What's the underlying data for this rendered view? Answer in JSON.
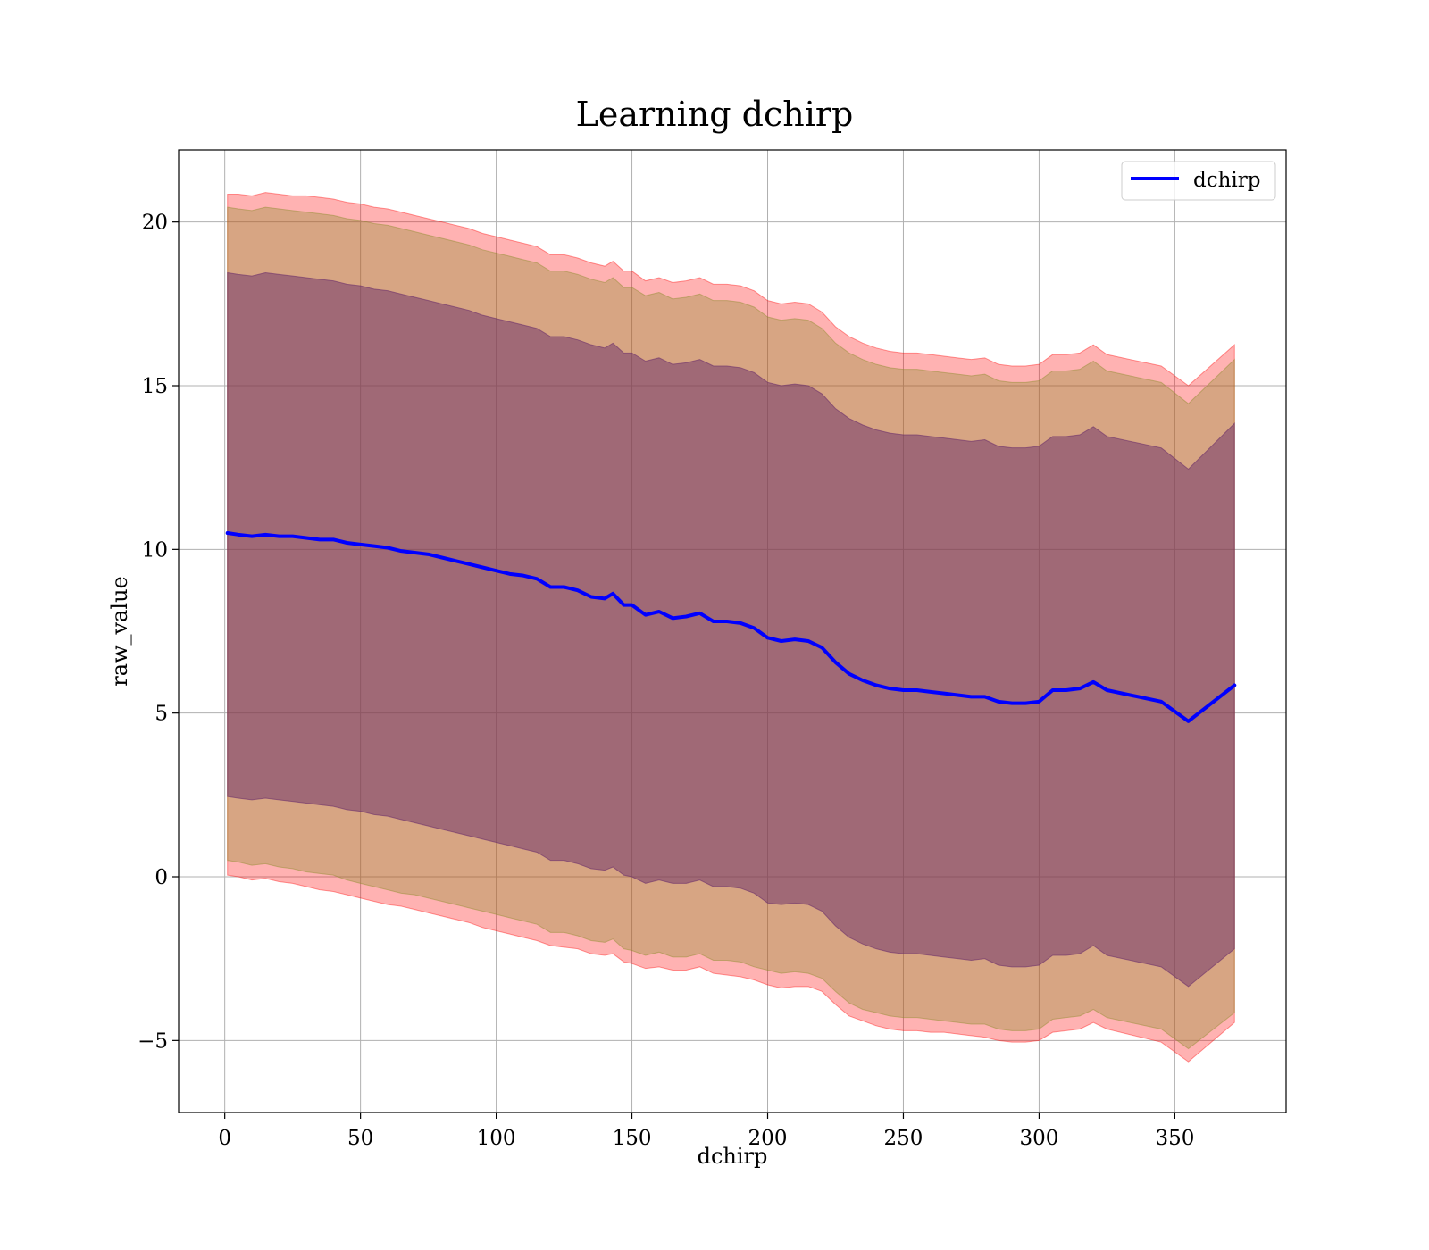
{
  "chart_data": {
    "type": "area",
    "title": "Learning dchirp",
    "xlabel": "dchirp",
    "ylabel": "raw_value",
    "xlim": [
      -17,
      391
    ],
    "ylim": [
      -7.2,
      22.2
    ],
    "xticks": [
      0,
      50,
      100,
      150,
      200,
      250,
      300,
      350
    ],
    "xtick_labels": [
      "0",
      "50",
      "100",
      "150",
      "200",
      "250",
      "300",
      "350"
    ],
    "yticks": [
      -5,
      0,
      5,
      10,
      15,
      20
    ],
    "ytick_labels": [
      "−5",
      "0",
      "5",
      "10",
      "15",
      "20"
    ],
    "grid": true,
    "legend": {
      "position": "top-right",
      "entries": [
        "dchirp"
      ]
    },
    "colors": {
      "line": "#0000ff",
      "band_outer": "#ff0000",
      "band_middle": "#8c8c2a",
      "band_inner": "#6a2e6a"
    },
    "x": [
      1,
      5,
      10,
      15,
      20,
      25,
      30,
      35,
      40,
      45,
      50,
      55,
      60,
      65,
      70,
      75,
      80,
      85,
      90,
      95,
      100,
      105,
      110,
      115,
      120,
      125,
      130,
      135,
      140,
      143,
      147,
      150,
      155,
      160,
      165,
      170,
      175,
      180,
      185,
      190,
      195,
      200,
      205,
      210,
      215,
      220,
      225,
      230,
      235,
      240,
      245,
      250,
      255,
      260,
      265,
      270,
      275,
      280,
      285,
      290,
      295,
      300,
      305,
      310,
      315,
      320,
      325,
      345,
      355,
      372
    ],
    "series": [
      {
        "name": "dchirp",
        "values": [
          10.5,
          10.45,
          10.4,
          10.45,
          10.4,
          10.4,
          10.35,
          10.3,
          10.3,
          10.2,
          10.15,
          10.1,
          10.05,
          9.95,
          9.9,
          9.85,
          9.75,
          9.65,
          9.55,
          9.45,
          9.35,
          9.25,
          9.2,
          9.1,
          8.85,
          8.85,
          8.75,
          8.55,
          8.5,
          8.65,
          8.3,
          8.3,
          8.0,
          8.1,
          7.9,
          7.95,
          8.05,
          7.8,
          7.8,
          7.75,
          7.6,
          7.3,
          7.2,
          7.25,
          7.2,
          7.0,
          6.55,
          6.2,
          6.0,
          5.85,
          5.75,
          5.7,
          5.7,
          5.65,
          5.6,
          5.55,
          5.5,
          5.5,
          5.35,
          5.3,
          5.3,
          5.35,
          5.7,
          5.7,
          5.75,
          5.95,
          5.7,
          5.35,
          4.75,
          5.85
        ]
      }
    ],
    "bands": [
      {
        "label": "outer",
        "lower": [
          0.05,
          0.0,
          -0.1,
          -0.05,
          -0.15,
          -0.2,
          -0.3,
          -0.4,
          -0.45,
          -0.55,
          -0.65,
          -0.75,
          -0.85,
          -0.9,
          -1.0,
          -1.1,
          -1.2,
          -1.3,
          -1.4,
          -1.55,
          -1.65,
          -1.75,
          -1.85,
          -1.95,
          -2.1,
          -2.15,
          -2.2,
          -2.35,
          -2.4,
          -2.35,
          -2.6,
          -2.65,
          -2.8,
          -2.75,
          -2.85,
          -2.85,
          -2.75,
          -2.95,
          -3.0,
          -3.05,
          -3.15,
          -3.3,
          -3.4,
          -3.35,
          -3.35,
          -3.5,
          -3.9,
          -4.25,
          -4.4,
          -4.55,
          -4.65,
          -4.7,
          -4.7,
          -4.75,
          -4.75,
          -4.8,
          -4.85,
          -4.9,
          -5.0,
          -5.05,
          -5.05,
          -5.0,
          -4.75,
          -4.7,
          -4.65,
          -4.45,
          -4.65,
          -5.05,
          -5.65,
          -4.45
        ],
        "upper": [
          20.85,
          20.85,
          20.8,
          20.9,
          20.85,
          20.8,
          20.8,
          20.75,
          20.7,
          20.6,
          20.55,
          20.45,
          20.4,
          20.3,
          20.2,
          20.1,
          20.0,
          19.9,
          19.8,
          19.65,
          19.55,
          19.45,
          19.35,
          19.25,
          19.0,
          19.0,
          18.9,
          18.75,
          18.65,
          18.8,
          18.5,
          18.5,
          18.2,
          18.3,
          18.15,
          18.2,
          18.3,
          18.1,
          18.1,
          18.05,
          17.9,
          17.6,
          17.5,
          17.55,
          17.5,
          17.25,
          16.8,
          16.5,
          16.3,
          16.15,
          16.05,
          16.0,
          16.0,
          15.95,
          15.9,
          15.85,
          15.8,
          15.85,
          15.65,
          15.6,
          15.6,
          15.65,
          15.95,
          15.95,
          16.0,
          16.25,
          15.95,
          15.6,
          15.0,
          16.25
        ]
      },
      {
        "label": "middle",
        "lower": [
          0.5,
          0.45,
          0.35,
          0.4,
          0.3,
          0.25,
          0.15,
          0.1,
          0.05,
          -0.1,
          -0.2,
          -0.3,
          -0.4,
          -0.5,
          -0.55,
          -0.65,
          -0.75,
          -0.85,
          -0.95,
          -1.05,
          -1.15,
          -1.25,
          -1.35,
          -1.45,
          -1.7,
          -1.7,
          -1.8,
          -1.95,
          -2.0,
          -1.9,
          -2.2,
          -2.25,
          -2.4,
          -2.3,
          -2.45,
          -2.45,
          -2.35,
          -2.55,
          -2.55,
          -2.6,
          -2.75,
          -2.85,
          -2.95,
          -2.9,
          -2.95,
          -3.1,
          -3.5,
          -3.85,
          -4.05,
          -4.15,
          -4.25,
          -4.3,
          -4.3,
          -4.35,
          -4.4,
          -4.45,
          -4.5,
          -4.5,
          -4.65,
          -4.7,
          -4.7,
          -4.65,
          -4.35,
          -4.3,
          -4.25,
          -4.05,
          -4.3,
          -4.65,
          -5.25,
          -4.15
        ],
        "upper": [
          20.45,
          20.4,
          20.35,
          20.45,
          20.4,
          20.35,
          20.3,
          20.25,
          20.2,
          20.1,
          20.05,
          19.95,
          19.9,
          19.8,
          19.7,
          19.6,
          19.5,
          19.4,
          19.3,
          19.15,
          19.05,
          18.95,
          18.85,
          18.75,
          18.5,
          18.5,
          18.4,
          18.25,
          18.15,
          18.3,
          18.0,
          18.0,
          17.75,
          17.85,
          17.65,
          17.7,
          17.8,
          17.6,
          17.6,
          17.55,
          17.4,
          17.1,
          17.0,
          17.05,
          17.0,
          16.75,
          16.3,
          16.0,
          15.8,
          15.65,
          15.55,
          15.5,
          15.5,
          15.45,
          15.4,
          15.35,
          15.3,
          15.35,
          15.15,
          15.1,
          15.1,
          15.15,
          15.45,
          15.45,
          15.5,
          15.75,
          15.45,
          15.1,
          14.45,
          15.8
        ]
      },
      {
        "label": "inner",
        "lower": [
          2.45,
          2.4,
          2.35,
          2.4,
          2.35,
          2.3,
          2.25,
          2.2,
          2.15,
          2.05,
          2.0,
          1.9,
          1.85,
          1.75,
          1.65,
          1.55,
          1.45,
          1.35,
          1.25,
          1.15,
          1.05,
          0.95,
          0.85,
          0.75,
          0.5,
          0.5,
          0.4,
          0.25,
          0.2,
          0.3,
          0.05,
          0.0,
          -0.2,
          -0.1,
          -0.2,
          -0.2,
          -0.1,
          -0.3,
          -0.3,
          -0.35,
          -0.5,
          -0.8,
          -0.85,
          -0.8,
          -0.85,
          -1.05,
          -1.5,
          -1.85,
          -2.05,
          -2.2,
          -2.3,
          -2.35,
          -2.35,
          -2.4,
          -2.45,
          -2.5,
          -2.55,
          -2.5,
          -2.7,
          -2.75,
          -2.75,
          -2.7,
          -2.4,
          -2.4,
          -2.35,
          -2.1,
          -2.4,
          -2.75,
          -3.35,
          -2.2
        ],
        "upper": [
          18.45,
          18.4,
          18.35,
          18.45,
          18.4,
          18.35,
          18.3,
          18.25,
          18.2,
          18.1,
          18.05,
          17.95,
          17.9,
          17.8,
          17.7,
          17.6,
          17.5,
          17.4,
          17.3,
          17.15,
          17.05,
          16.95,
          16.85,
          16.75,
          16.5,
          16.5,
          16.4,
          16.25,
          16.15,
          16.3,
          16.0,
          16.0,
          15.75,
          15.85,
          15.65,
          15.7,
          15.8,
          15.6,
          15.6,
          15.55,
          15.4,
          15.1,
          15.0,
          15.05,
          15.0,
          14.75,
          14.3,
          14.0,
          13.8,
          13.65,
          13.55,
          13.5,
          13.5,
          13.45,
          13.4,
          13.35,
          13.3,
          13.35,
          13.15,
          13.1,
          13.1,
          13.15,
          13.45,
          13.45,
          13.5,
          13.75,
          13.45,
          13.1,
          12.45,
          13.85
        ]
      }
    ]
  }
}
